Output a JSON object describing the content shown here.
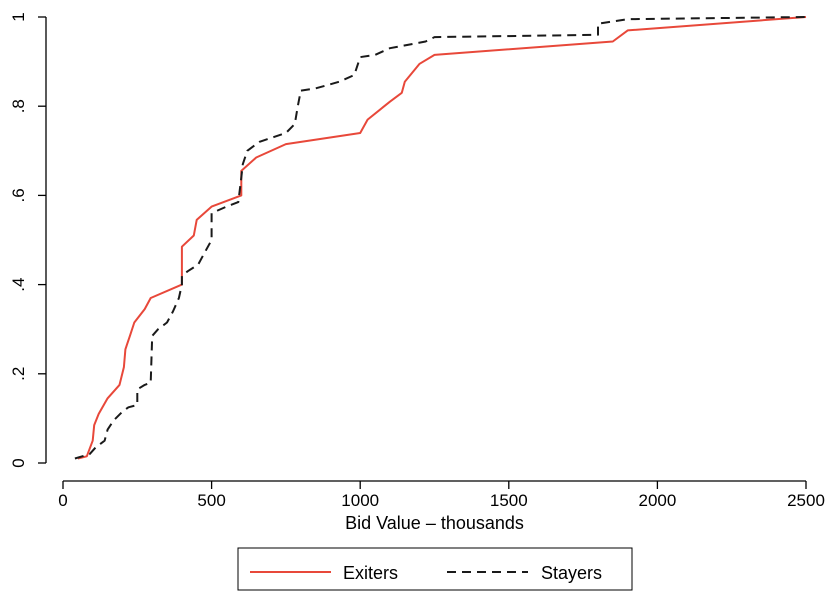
{
  "chart_data": {
    "type": "line",
    "xlabel": "Bid Value – thousands",
    "ylabel": "",
    "xlim": [
      0,
      2500
    ],
    "ylim": [
      0,
      1
    ],
    "x_ticks": [
      {
        "value": 0,
        "label": "0"
      },
      {
        "value": 500,
        "label": "500"
      },
      {
        "value": 1000,
        "label": "1000"
      },
      {
        "value": 1500,
        "label": "1500"
      },
      {
        "value": 2000,
        "label": "2000"
      },
      {
        "value": 2500,
        "label": "2500"
      }
    ],
    "y_ticks": [
      {
        "value": 0,
        "label": "0"
      },
      {
        "value": 0.2,
        "label": ".2"
      },
      {
        "value": 0.4,
        "label": ".4"
      },
      {
        "value": 0.6,
        "label": ".6"
      },
      {
        "value": 0.8,
        "label": ".8"
      },
      {
        "value": 1,
        "label": "1"
      }
    ],
    "grid": false,
    "legend_position": "bottom",
    "series": [
      {
        "name": "Exiters",
        "color": "#e8483a",
        "style": "solid",
        "points": [
          [
            50,
            0.01
          ],
          [
            80,
            0.015
          ],
          [
            100,
            0.05
          ],
          [
            105,
            0.085
          ],
          [
            120,
            0.11
          ],
          [
            150,
            0.145
          ],
          [
            190,
            0.175
          ],
          [
            205,
            0.215
          ],
          [
            210,
            0.255
          ],
          [
            225,
            0.285
          ],
          [
            240,
            0.315
          ],
          [
            275,
            0.345
          ],
          [
            295,
            0.37
          ],
          [
            400,
            0.4
          ],
          [
            400,
            0.485
          ],
          [
            440,
            0.51
          ],
          [
            450,
            0.545
          ],
          [
            500,
            0.575
          ],
          [
            600,
            0.6
          ],
          [
            600,
            0.655
          ],
          [
            650,
            0.685
          ],
          [
            750,
            0.715
          ],
          [
            1000,
            0.74
          ],
          [
            1025,
            0.77
          ],
          [
            1100,
            0.81
          ],
          [
            1140,
            0.83
          ],
          [
            1150,
            0.855
          ],
          [
            1200,
            0.895
          ],
          [
            1250,
            0.915
          ],
          [
            1850,
            0.945
          ],
          [
            1900,
            0.97
          ],
          [
            2500,
            1.0
          ]
        ]
      },
      {
        "name": "Stayers",
        "color": "#1a1a1a",
        "style": "dashed",
        "points": [
          [
            40,
            0.01
          ],
          [
            90,
            0.02
          ],
          [
            110,
            0.035
          ],
          [
            140,
            0.05
          ],
          [
            150,
            0.075
          ],
          [
            170,
            0.095
          ],
          [
            200,
            0.115
          ],
          [
            220,
            0.125
          ],
          [
            250,
            0.13
          ],
          [
            250,
            0.165
          ],
          [
            275,
            0.175
          ],
          [
            295,
            0.18
          ],
          [
            300,
            0.285
          ],
          [
            320,
            0.3
          ],
          [
            350,
            0.315
          ],
          [
            370,
            0.34
          ],
          [
            390,
            0.37
          ],
          [
            400,
            0.4
          ],
          [
            400,
            0.42
          ],
          [
            420,
            0.43
          ],
          [
            455,
            0.445
          ],
          [
            475,
            0.47
          ],
          [
            500,
            0.5
          ],
          [
            500,
            0.56
          ],
          [
            550,
            0.575
          ],
          [
            590,
            0.585
          ],
          [
            600,
            0.64
          ],
          [
            605,
            0.67
          ],
          [
            620,
            0.7
          ],
          [
            660,
            0.72
          ],
          [
            750,
            0.74
          ],
          [
            780,
            0.76
          ],
          [
            790,
            0.8
          ],
          [
            800,
            0.835
          ],
          [
            850,
            0.84
          ],
          [
            930,
            0.855
          ],
          [
            980,
            0.87
          ],
          [
            1000,
            0.91
          ],
          [
            1050,
            0.915
          ],
          [
            1100,
            0.93
          ],
          [
            1220,
            0.945
          ],
          [
            1250,
            0.955
          ],
          [
            1800,
            0.96
          ],
          [
            1800,
            0.985
          ],
          [
            1900,
            0.995
          ],
          [
            2500,
            1.0
          ]
        ]
      }
    ]
  }
}
